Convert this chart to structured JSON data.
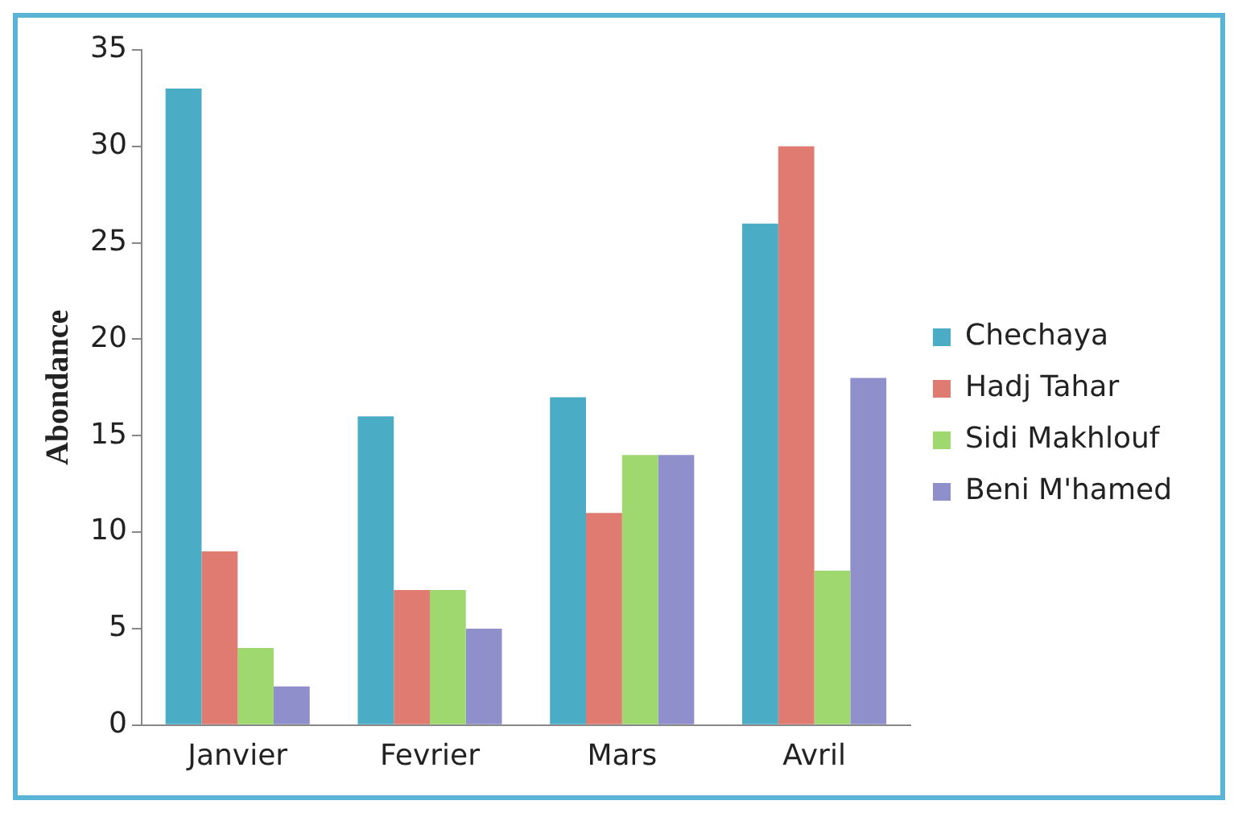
{
  "chart_data": {
    "type": "bar",
    "ylabel": "Abondance",
    "categories": [
      "Janvier",
      "Fevrier",
      "Mars",
      "Avril"
    ],
    "series": [
      {
        "name": "Chechaya",
        "color": "#4bacc6",
        "values": [
          33,
          16,
          17,
          26
        ]
      },
      {
        "name": "Hadj Tahar",
        "color": "#e07b72",
        "values": [
          9,
          7,
          11,
          30
        ]
      },
      {
        "name": "Sidi Makhlouf",
        "color": "#9ed86e",
        "values": [
          4,
          7,
          14,
          8
        ]
      },
      {
        "name": "Beni M'hamed",
        "color": "#8f8fcc",
        "values": [
          2,
          5,
          14,
          18
        ]
      }
    ],
    "ylim": [
      0,
      35
    ],
    "yticks": [
      0,
      5,
      10,
      15,
      20,
      25,
      30,
      35
    ],
    "grid": false,
    "legend": "right"
  }
}
